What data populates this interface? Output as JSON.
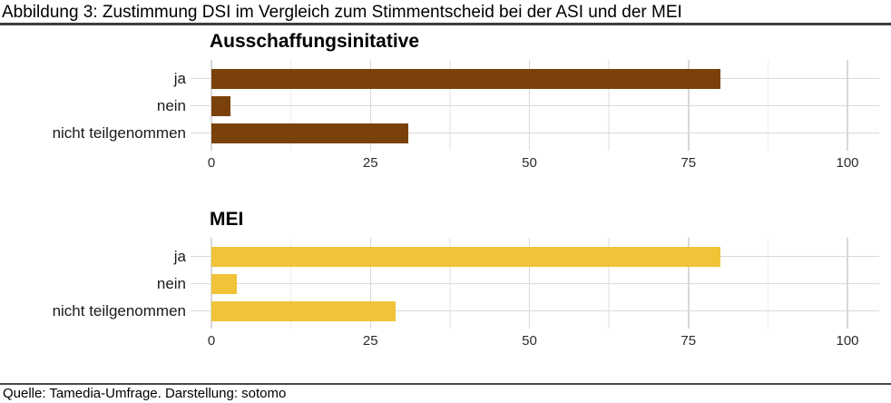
{
  "page": {
    "title": "Abbildung 3: Zustimmung DSI im Vergleich zum Stimmentscheid bei der ASI und der MEI",
    "source_note": "Quelle: Tamedia-Umfrage. Darstellung: sotomo"
  },
  "colors": {
    "header_rule": "#3d3d3d",
    "footer_rule": "#4a4a4a",
    "grid_major": "#d8d8d8",
    "grid_minor": "#eeeeee",
    "row_line": "#dadada"
  },
  "chart_data": [
    {
      "type": "bar",
      "orientation": "horizontal",
      "title": "Ausschaffungsinitative",
      "categories": [
        "ja",
        "nein",
        "nicht teilgenommen"
      ],
      "values": [
        80,
        3,
        31
      ],
      "bar_color": "#7a420a",
      "xlim": [
        0,
        100
      ],
      "xticks": [
        0,
        25,
        50,
        75,
        100
      ],
      "minor_ticks": [
        12.5,
        37.5,
        62.5,
        87.5
      ],
      "grid": true,
      "legend": false
    },
    {
      "type": "bar",
      "orientation": "horizontal",
      "title": "MEI",
      "categories": [
        "ja",
        "nein",
        "nicht teilgenommen"
      ],
      "values": [
        80,
        4,
        29
      ],
      "bar_color": "#f0c339",
      "xlim": [
        0,
        100
      ],
      "xticks": [
        0,
        25,
        50,
        75,
        100
      ],
      "minor_ticks": [
        12.5,
        37.5,
        62.5,
        87.5
      ],
      "grid": true,
      "legend": false
    }
  ]
}
